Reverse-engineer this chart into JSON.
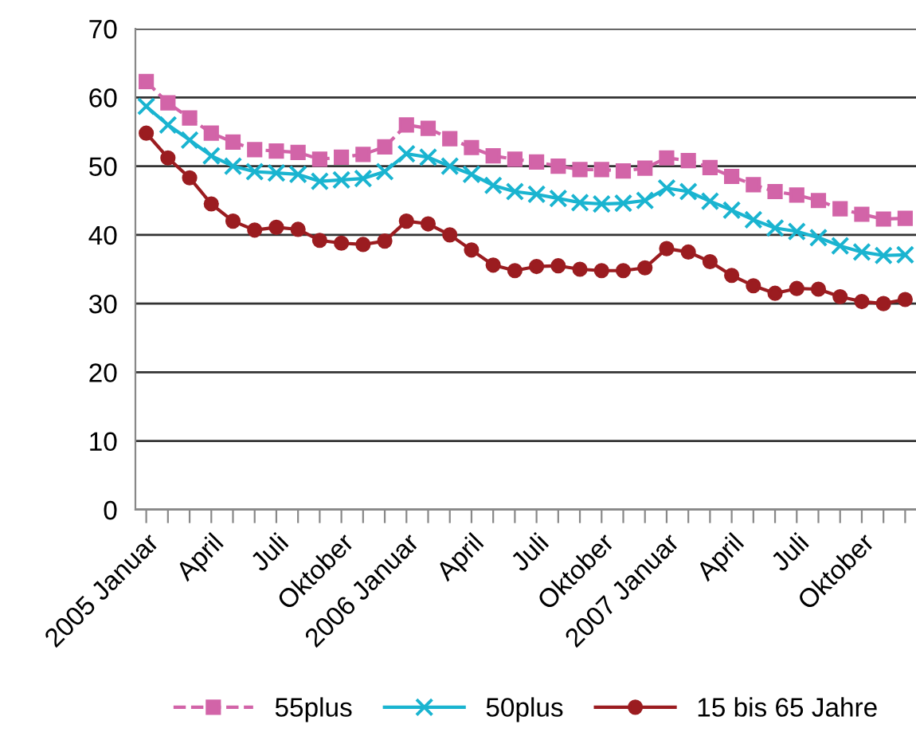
{
  "chart_data": {
    "type": "line",
    "categories": [
      "2005 Januar",
      null,
      null,
      "April",
      null,
      null,
      "Juli",
      null,
      null,
      "Oktober",
      null,
      null,
      "2006 Januar",
      null,
      null,
      "April",
      null,
      null,
      "Juli",
      null,
      null,
      "Oktober",
      null,
      null,
      "2007 Januar",
      null,
      null,
      "April",
      null,
      null,
      "Juli",
      null,
      null,
      "Oktober",
      null,
      null
    ],
    "series": [
      {
        "name": "55plus",
        "color": "#d264a8",
        "marker": "square",
        "line_style": "dashed",
        "values": [
          62.3,
          59.2,
          57,
          54.8,
          53.5,
          52.4,
          52.2,
          52,
          51,
          51.3,
          51.7,
          52.8,
          56,
          55.5,
          54,
          52.7,
          51.5,
          51,
          50.6,
          50,
          49.5,
          49.5,
          49.3,
          49.7,
          51.2,
          50.8,
          49.8,
          48.5,
          47.3,
          46.3,
          45.8,
          45,
          43.8,
          43,
          42.3,
          42.4
        ]
      },
      {
        "name": "50plus",
        "color": "#1ab4d0",
        "marker": "cross",
        "line_style": "solid",
        "values": [
          58.7,
          56,
          53.8,
          51.5,
          50,
          49.2,
          49,
          48.8,
          47.8,
          48,
          48.2,
          49.2,
          51.8,
          51.3,
          50,
          48.8,
          47.2,
          46.3,
          45.9,
          45.3,
          44.7,
          44.5,
          44.6,
          45,
          46.8,
          46.3,
          44.9,
          43.6,
          42.2,
          41,
          40.5,
          39.6,
          38.4,
          37.5,
          37,
          37.1
        ]
      },
      {
        "name": "15 bis 65 Jahre",
        "color": "#9b1c20",
        "marker": "circle",
        "line_style": "solid",
        "values": [
          54.8,
          51.2,
          48.3,
          44.5,
          42,
          40.7,
          41.1,
          40.8,
          39.2,
          38.8,
          38.6,
          39.1,
          42,
          41.6,
          40,
          37.8,
          35.6,
          34.8,
          35.4,
          35.5,
          35,
          34.8,
          34.8,
          35.2,
          38,
          37.5,
          36.1,
          34.1,
          32.6,
          31.5,
          32.2,
          32.1,
          31,
          30.3,
          30,
          30.6
        ]
      }
    ],
    "ylim": [
      0,
      70
    ],
    "yticks": [
      0,
      10,
      20,
      30,
      40,
      50,
      60,
      70
    ],
    "grid": "y",
    "legend": "bottom"
  }
}
